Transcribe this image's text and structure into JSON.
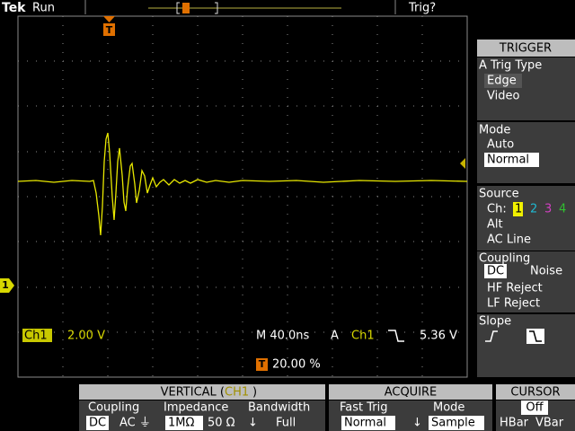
{
  "status_bar": {
    "brand": "Tek",
    "state": "Run",
    "trigger_status": "Trig?"
  },
  "markers": {
    "trigger_position": "T",
    "channel": "1"
  },
  "readout": {
    "channel": "Ch1",
    "volts_per_div": "2.00 V",
    "timebase": "M 40.0ns",
    "trigger_prefix": "A",
    "trigger_channel": "Ch1",
    "trigger_level": "5.36 V",
    "trigger_position": "20.00 %"
  },
  "trigger_menu": {
    "title": "TRIGGER",
    "trig_type": {
      "label": "A Trig Type",
      "options": [
        "Edge",
        "Video"
      ]
    },
    "mode": {
      "label": "Mode",
      "options": [
        "Auto",
        "Normal"
      ]
    },
    "source": {
      "label": "Source",
      "channel_label": "Ch:",
      "channels": [
        "1",
        "2",
        "3",
        "4"
      ],
      "options": [
        "Alt",
        "AC Line"
      ]
    },
    "coupling": {
      "label": "Coupling",
      "options": [
        "DC",
        "Noise",
        "HF Reject",
        "LF Reject"
      ]
    },
    "slope": {
      "label": "Slope"
    }
  },
  "vertical_menu": {
    "title_prefix": "VERTICAL (",
    "channel": "CH1",
    "title_suffix": ")",
    "columns": [
      {
        "label": "Coupling",
        "options": [
          "DC",
          "AC ⏚"
        ]
      },
      {
        "label": "Impedance",
        "options": [
          "1MΩ",
          "50 Ω"
        ]
      },
      {
        "label": "Bandwidth",
        "options": [
          "↓",
          "Full"
        ]
      }
    ]
  },
  "acquire_menu": {
    "title": "ACQUIRE",
    "columns": [
      {
        "label": "Fast Trig",
        "options": [
          "Normal"
        ]
      },
      {
        "label": "↓"
      },
      {
        "label": "Mode",
        "options": [
          "Sample"
        ]
      }
    ]
  },
  "cursor_menu": {
    "title": "CURSOR",
    "options": [
      "Off",
      "HBar",
      "VBar"
    ]
  }
}
